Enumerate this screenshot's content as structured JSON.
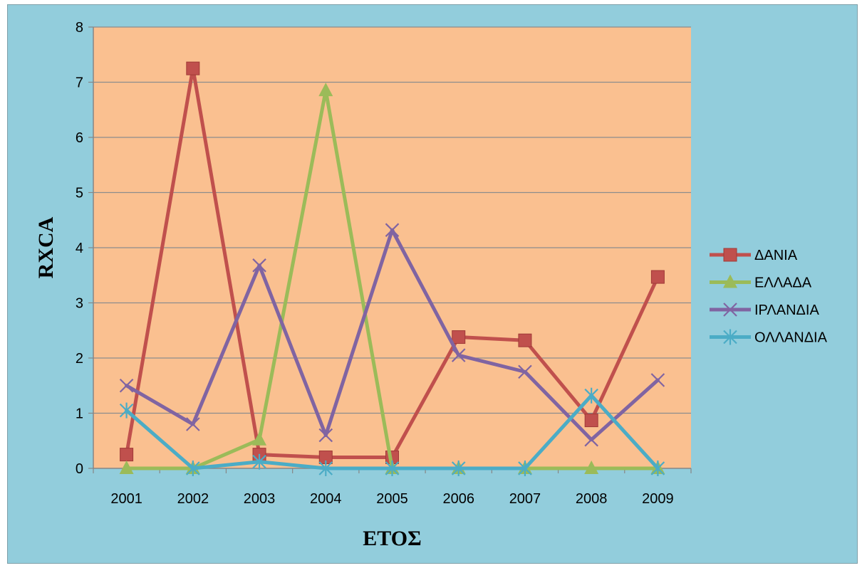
{
  "chart_data": {
    "type": "line",
    "title": "",
    "xlabel": "ΕΤΟΣ",
    "ylabel": "RXCA",
    "categories": [
      "2001",
      "2002",
      "2003",
      "2004",
      "2005",
      "2006",
      "2007",
      "2008",
      "2009"
    ],
    "ylim": [
      0,
      8
    ],
    "yticks": [
      "0",
      "1",
      "2",
      "3",
      "4",
      "5",
      "6",
      "7",
      "8"
    ],
    "grid": true,
    "legend_position": "right",
    "plot_background": "#fac090",
    "chart_background": "#92cddc",
    "series": [
      {
        "name": "ΔΑΝΙΑ",
        "marker": "square",
        "color": "#c0504d",
        "values": [
          0.25,
          7.25,
          0.25,
          0.2,
          0.2,
          2.38,
          2.32,
          0.87,
          3.47
        ]
      },
      {
        "name": "ΕΛΛΑΔΑ",
        "marker": "triangle",
        "color": "#9bbb59",
        "values": [
          0,
          0,
          0.52,
          6.85,
          0,
          0,
          0,
          0,
          0
        ]
      },
      {
        "name": "ΙΡΛΑΝΔΙΑ",
        "marker": "x",
        "color": "#8064a2",
        "values": [
          1.5,
          0.8,
          3.68,
          0.6,
          4.32,
          2.05,
          1.75,
          0.52,
          1.6
        ]
      },
      {
        "name": "ΟΛΛΑΝΔΙΑ",
        "marker": "star",
        "color": "#4bacc6",
        "values": [
          1.05,
          0,
          0.12,
          0,
          0,
          0,
          0,
          1.32,
          0
        ]
      }
    ]
  }
}
